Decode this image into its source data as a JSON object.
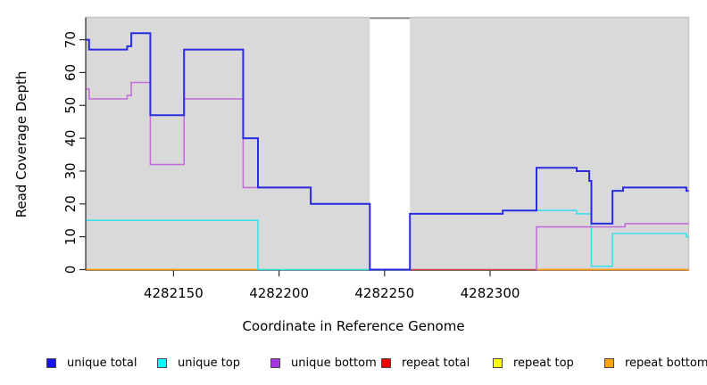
{
  "chart_data": {
    "type": "line",
    "subtype": "step-coverage-plot",
    "title": "",
    "xlabel": "Coordinate in Reference Genome",
    "ylabel": "Read Coverage Depth",
    "x_ticks": [
      4282150,
      4282200,
      4282250,
      4282300
    ],
    "y_ticks": [
      0,
      10,
      20,
      30,
      40,
      50,
      60,
      70
    ],
    "xlim": [
      4282108.6,
      4282394.1
    ],
    "ylim": [
      0,
      76.8
    ],
    "grid": false,
    "plot_bg_color": "#d9d9d9",
    "frame_color": "#c4c4c4",
    "axis_color": "#2e2e2e",
    "no_data_region": {
      "start": 4282243,
      "end": 4282262,
      "marker_color": "#858585"
    },
    "series": [
      {
        "name": "repeat total",
        "color": "#d24a52",
        "width": 1.6,
        "segments": [
          {
            "steps": [
              [
                4282262,
                0
              ]
            ],
            "end": 4282394.1
          }
        ]
      },
      {
        "name": "repeat top",
        "color": "#84cb84",
        "width": 1.6,
        "segments": [
          {
            "steps": [
              [
                4282190,
                0
              ]
            ],
            "end": 4282243
          }
        ]
      },
      {
        "name": "repeat bottom",
        "color": "#ff9f1a",
        "width": 1.8,
        "segments": [
          {
            "steps": [
              [
                4282108.6,
                0
              ]
            ],
            "end": 4282190
          },
          {
            "steps": [
              [
                4282322,
                0
              ]
            ],
            "end": 4282394.1
          }
        ]
      },
      {
        "name": "unique top",
        "color": "#3fdfe9",
        "width": 1.6,
        "segments": [
          {
            "steps": [
              [
                4282108.6,
                15
              ],
              [
                4282190,
                0
              ]
            ],
            "end": 4282243
          },
          {
            "steps": [
              [
                4282262,
                17
              ],
              [
                4282306,
                18
              ],
              [
                4282341,
                17
              ],
              [
                4282348,
                1
              ],
              [
                4282358,
                11
              ],
              [
                4282393,
                10
              ]
            ],
            "end": 4282394.1
          }
        ]
      },
      {
        "name": "unique bottom",
        "color": "#c46fd9",
        "width": 1.6,
        "segments": [
          {
            "steps": [
              [
                4282108.6,
                55
              ],
              [
                4282110,
                52
              ],
              [
                4282128,
                53
              ],
              [
                4282130,
                57
              ],
              [
                4282139,
                32
              ],
              [
                4282155,
                52
              ],
              [
                4282183,
                25
              ],
              [
                4282215,
                20
              ],
              [
                4282243,
                0
              ]
            ],
            "end": 4282244
          },
          {
            "steps": [
              [
                4282321.8,
                0
              ],
              [
                4282322,
                13
              ],
              [
                4282364,
                14
              ]
            ],
            "end": 4282394.1
          }
        ]
      },
      {
        "name": "unique total",
        "color": "#2b2be0",
        "width": 2,
        "segments": [
          {
            "steps": [
              [
                4282108.6,
                70
              ],
              [
                4282110,
                67
              ],
              [
                4282128,
                68
              ],
              [
                4282130,
                72
              ],
              [
                4282139,
                47
              ],
              [
                4282155,
                67
              ],
              [
                4282183,
                40
              ],
              [
                4282190,
                25
              ],
              [
                4282215,
                20
              ],
              [
                4282243,
                0
              ],
              [
                4282262,
                17
              ],
              [
                4282306,
                18
              ],
              [
                4282322,
                31
              ],
              [
                4282341,
                30
              ],
              [
                4282347,
                27
              ],
              [
                4282348,
                14
              ],
              [
                4282358,
                24
              ],
              [
                4282363,
                25
              ],
              [
                4282393,
                24
              ]
            ],
            "end": 4282394.1
          }
        ]
      }
    ],
    "legend": [
      {
        "label": "unique total",
        "color": "#1414eb"
      },
      {
        "label": "unique top",
        "color": "#00ffff"
      },
      {
        "label": "unique bottom",
        "color": "#a437db"
      },
      {
        "label": "repeat total",
        "color": "#ee0000"
      },
      {
        "label": "repeat top",
        "color": "#ffff00"
      },
      {
        "label": "repeat bottom",
        "color": "#ffa500"
      }
    ],
    "legend_position": "bottom"
  }
}
